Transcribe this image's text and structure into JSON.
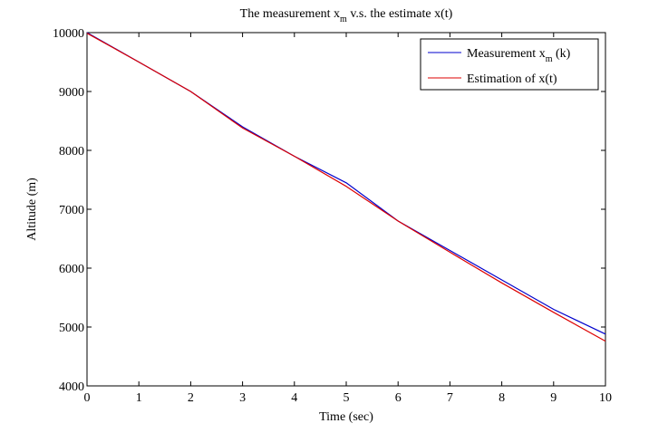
{
  "chart_data": {
    "type": "line",
    "title": {
      "prefix": "The measurement x",
      "subscript": "m",
      "suffix": " v.s. the estimate x(t)"
    },
    "xlabel": "Time (sec)",
    "ylabel": "Altitude (m)",
    "xlim": [
      0,
      10
    ],
    "ylim": [
      4000,
      10000
    ],
    "xticks": [
      0,
      1,
      2,
      3,
      4,
      5,
      6,
      7,
      8,
      9,
      10
    ],
    "yticks": [
      4000,
      5000,
      6000,
      7000,
      8000,
      9000,
      10000
    ],
    "grid": false,
    "legend_position": "top-right",
    "series": [
      {
        "name": "Measurement x_m (k)",
        "legend": {
          "prefix": "Measurement x",
          "subscript": "m",
          "suffix": " (k)"
        },
        "color": "#0000cc",
        "x": [
          0,
          1,
          2,
          3,
          4,
          5,
          6,
          7,
          8,
          9,
          10
        ],
        "y": [
          10000,
          9500,
          9000,
          8400,
          7900,
          7450,
          6800,
          6300,
          5800,
          5300,
          4880
        ]
      },
      {
        "name": "Estimation of x(t)",
        "legend": {
          "prefix": "Estimation of x(t)",
          "subscript": "",
          "suffix": ""
        },
        "color": "#dd0000",
        "x": [
          0,
          1,
          2,
          3,
          4,
          5,
          6,
          7,
          8,
          9,
          10
        ],
        "y": [
          9990,
          9500,
          9000,
          8380,
          7900,
          7390,
          6800,
          6270,
          5750,
          5250,
          4760
        ]
      }
    ]
  }
}
